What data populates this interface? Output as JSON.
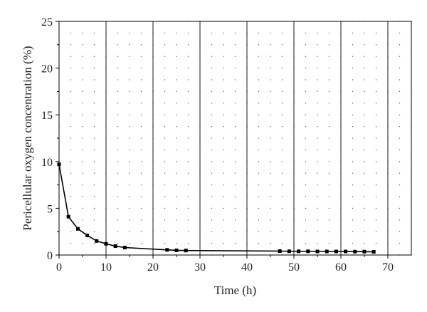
{
  "chart_data": {
    "type": "line",
    "title": "",
    "xlabel": "Time (h)",
    "ylabel": "Pericellular oxygen concentration (%)",
    "xlim": [
      0,
      75
    ],
    "ylim": [
      0,
      25
    ],
    "x_ticks": [
      0,
      10,
      20,
      30,
      40,
      50,
      60,
      70
    ],
    "y_ticks": [
      0,
      5,
      10,
      15,
      20,
      25
    ],
    "grid": "dotted minor grid, solid vertical lines every 10 h",
    "line_color": "#000000",
    "marker": "square",
    "series": [
      {
        "x": [
          0,
          2,
          4,
          6,
          8,
          10,
          12,
          14,
          23,
          25,
          27,
          47,
          49,
          51,
          53,
          55,
          57,
          59,
          61,
          63,
          65,
          67
        ],
        "y": [
          9.7,
          4.1,
          2.8,
          2.1,
          1.5,
          1.2,
          0.95,
          0.8,
          0.55,
          0.5,
          0.48,
          0.42,
          0.4,
          0.4,
          0.4,
          0.38,
          0.38,
          0.38,
          0.38,
          0.36,
          0.36,
          0.34
        ]
      }
    ]
  }
}
